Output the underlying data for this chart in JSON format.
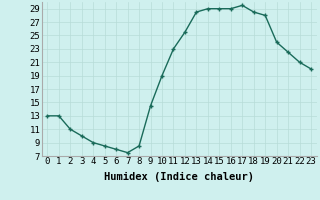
{
  "x": [
    0,
    1,
    2,
    3,
    4,
    5,
    6,
    7,
    8,
    9,
    10,
    11,
    12,
    13,
    14,
    15,
    16,
    17,
    18,
    19,
    20,
    21,
    22,
    23
  ],
  "y": [
    13,
    13,
    11,
    10,
    9,
    8.5,
    8,
    7.5,
    8.5,
    14.5,
    19,
    23,
    25.5,
    28.5,
    29,
    29,
    29,
    29.5,
    28.5,
    28,
    24,
    22.5,
    21,
    20
  ],
  "line_color": "#1a6b5a",
  "marker": "+",
  "marker_size": 3,
  "marker_edge_width": 1.0,
  "bg_color": "#cff0ee",
  "grid_color": "#b8dcd8",
  "xlabel": "Humidex (Indice chaleur)",
  "xlim": [
    -0.5,
    23.5
  ],
  "ylim": [
    7,
    30
  ],
  "yticks": [
    7,
    9,
    11,
    13,
    15,
    17,
    19,
    21,
    23,
    25,
    27,
    29
  ],
  "xtick_labels": [
    "0",
    "1",
    "2",
    "3",
    "4",
    "5",
    "6",
    "7",
    "8",
    "9",
    "10",
    "11",
    "12",
    "13",
    "14",
    "15",
    "16",
    "17",
    "18",
    "19",
    "20",
    "21",
    "22",
    "23"
  ],
  "xlabel_fontsize": 7.5,
  "tick_fontsize": 6.5,
  "line_width": 1.0
}
